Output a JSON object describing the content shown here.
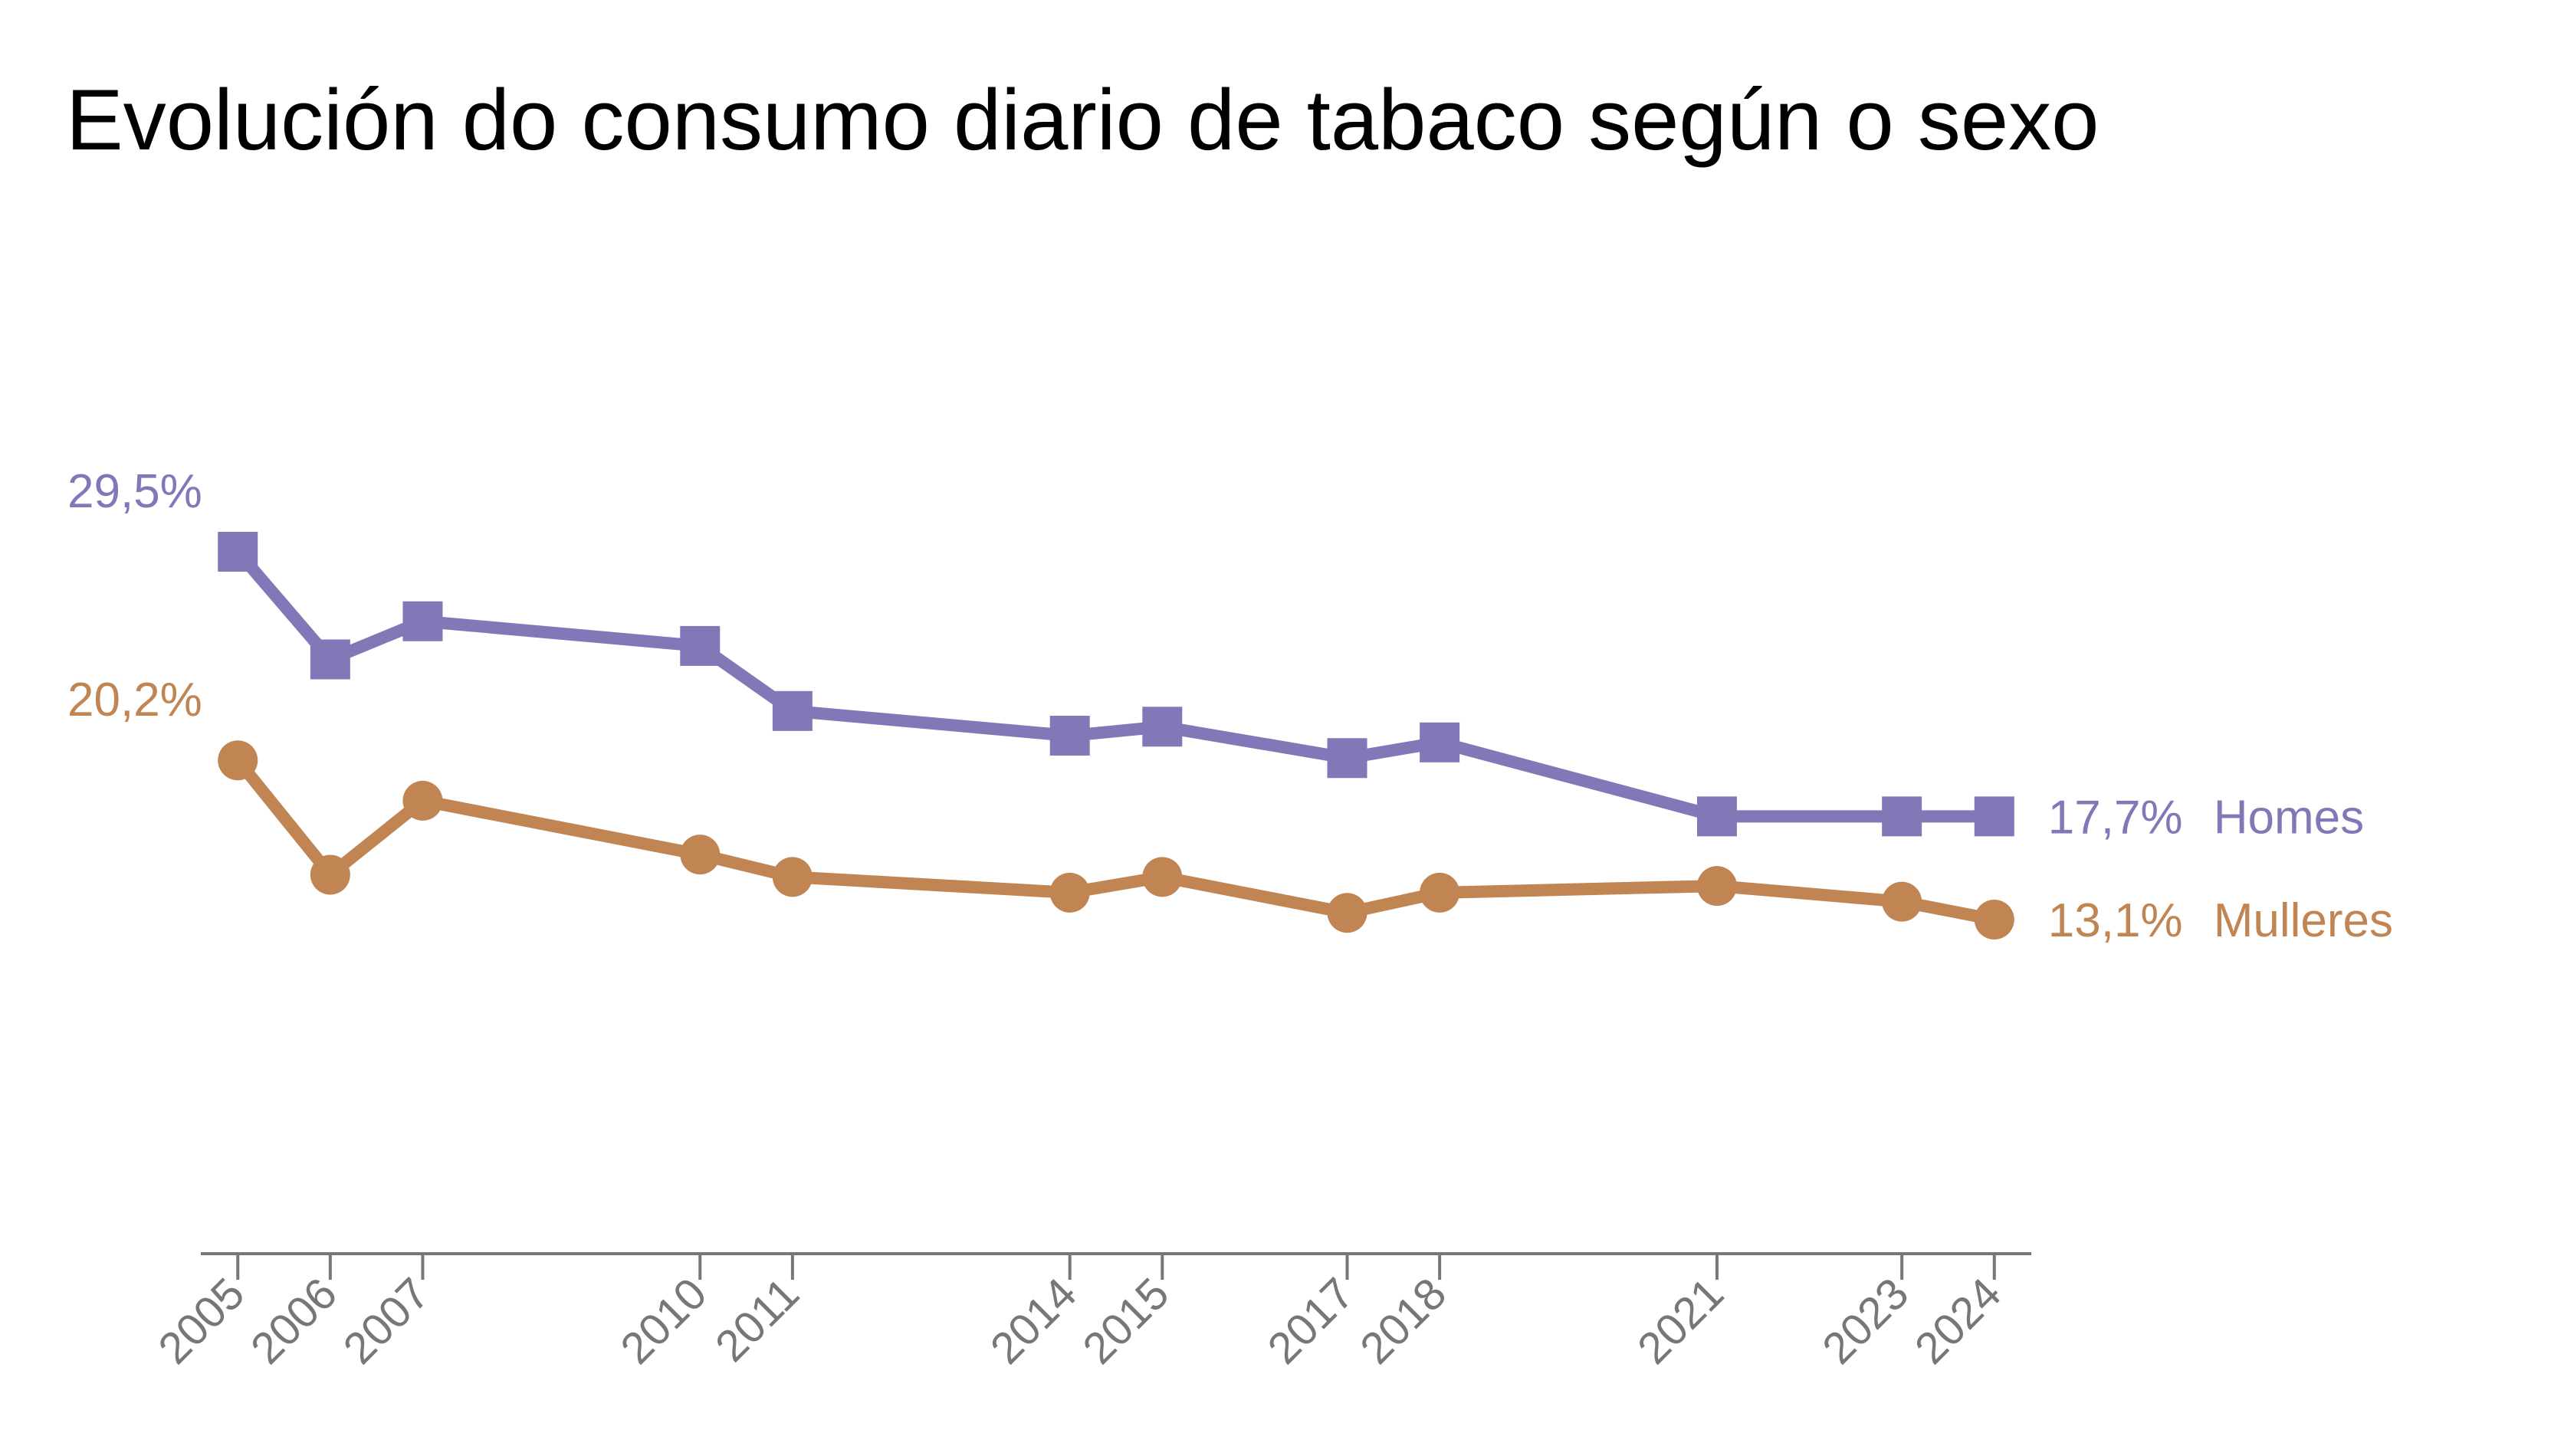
{
  "chart_data": {
    "type": "line",
    "title": "Evolución do consumo diario de tabaco según o sexo",
    "xlabel": "",
    "ylabel": "",
    "x": [
      2005,
      2006,
      2007,
      2010,
      2011,
      2014,
      2015,
      2017,
      2018,
      2021,
      2023,
      2024
    ],
    "x_tick_labels": [
      "2005",
      "2006",
      "2007",
      "2010",
      "2011",
      "2014",
      "2015",
      "2017",
      "2018",
      "2021",
      "2023",
      "2024"
    ],
    "xlim": [
      2004.6,
      2024.4
    ],
    "ylim": [
      0,
      35
    ],
    "grid": false,
    "legend": "direct labels at line ends (right)",
    "series": [
      {
        "name": "Homes",
        "color": "#8278b8",
        "marker": "square",
        "values": [
          29.5,
          24.7,
          26.4,
          25.3,
          22.4,
          21.3,
          21.7,
          20.3,
          21.0,
          17.7,
          17.7,
          17.7
        ],
        "start_label": "29,5%",
        "end_label": "17,7%"
      },
      {
        "name": "Mulleres",
        "color": "#c08552",
        "marker": "circle",
        "values": [
          20.2,
          15.1,
          18.4,
          16.0,
          15.0,
          14.3,
          15.0,
          13.4,
          14.3,
          14.6,
          13.9,
          13.1
        ],
        "start_label": "20,2%",
        "end_label": "13,1%"
      }
    ],
    "axis_color": "#777777"
  }
}
